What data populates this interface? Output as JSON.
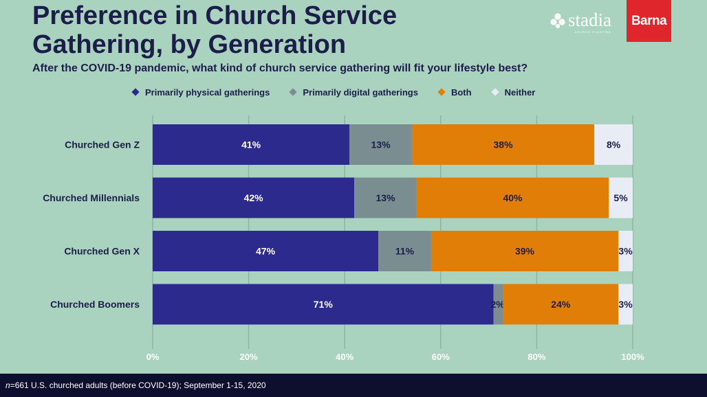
{
  "chart_data": {
    "type": "bar",
    "orientation": "horizontal",
    "stacked": true,
    "title": "Preference in Church Service Gathering, by Generation",
    "subtitle": "After the COVID-19 pandemic, what kind of church service gathering will fit your lifestyle best?",
    "categories": [
      "Churched Gen Z",
      "Churched Millennials",
      "Churched Gen X",
      "Churched Boomers"
    ],
    "series": [
      {
        "name": "Primarily physical gatherings",
        "color": "#2d2a8e",
        "label_color": "#ffffff",
        "values": [
          41,
          42,
          47,
          71
        ],
        "labels": [
          "41%",
          "42%",
          "47%",
          "71%"
        ]
      },
      {
        "name": "Primarily digital gatherings",
        "color": "#7a8e91",
        "label_color": "#1d1d4a",
        "values": [
          13,
          13,
          11,
          2
        ],
        "labels": [
          "13%",
          "13%",
          "11%",
          "2%"
        ]
      },
      {
        "name": "Both",
        "color": "#e07e08",
        "label_color": "#1d1d4a",
        "values": [
          38,
          40,
          39,
          24
        ],
        "labels": [
          "38%",
          "40%",
          "39%",
          "24%"
        ]
      },
      {
        "name": "Neither",
        "color": "#e8ecf4",
        "label_color": "#1d1d4a",
        "values": [
          8,
          5,
          3,
          3
        ],
        "labels": [
          "8%",
          "5%",
          "3%",
          "3%"
        ]
      }
    ],
    "xlim": [
      0,
      100
    ],
    "xticks": [
      "0%",
      "20%",
      "40%",
      "60%",
      "80%",
      "100%"
    ],
    "grid": true,
    "legend_position": "top"
  },
  "logos": {
    "stadia": "stadia",
    "stadia_sub": "CHURCH PLANTING",
    "barna": "Barna"
  },
  "footer": {
    "n_label": "n",
    "text": "=661 U.S. churched adults (before COVID-19); September 1-15, 2020"
  }
}
